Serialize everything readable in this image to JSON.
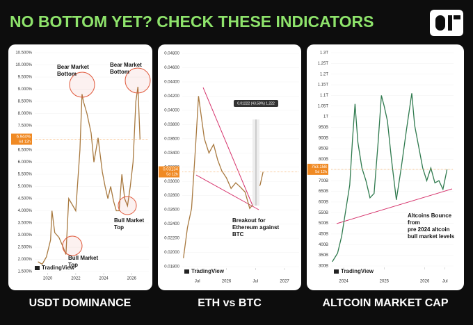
{
  "title": "NO BOTTOM YET? CHECK THESE INDICATORS",
  "chart_data": [
    {
      "type": "line",
      "title": "USDT DOMINANCE",
      "axis_side": "left",
      "color": "#a8793f",
      "x": [
        2019.3,
        2019.6,
        2019.9,
        2020.2,
        2020.3,
        2020.5,
        2020.8,
        2021.1,
        2021.3,
        2021.5,
        2021.8,
        2022.0,
        2022.3,
        2022.45,
        2022.55,
        2022.8,
        2023.1,
        2023.3,
        2023.6,
        2023.9,
        2024.1,
        2024.3,
        2024.5,
        2024.7,
        2024.9,
        2025.1,
        2025.3,
        2025.5,
        2025.7,
        2025.9,
        2026.1,
        2026.3,
        2026.45,
        2026.6
      ],
      "values": [
        1.9,
        1.8,
        2.1,
        2.8,
        4.0,
        3.1,
        2.9,
        2.5,
        2.2,
        4.5,
        4.2,
        4.0,
        6.5,
        8.8,
        8.5,
        8.0,
        7.2,
        6.0,
        7.0,
        5.6,
        5.0,
        4.5,
        5.0,
        4.4,
        4.0,
        4.0,
        5.5,
        4.5,
        4.2,
        5.0,
        6.0,
        8.5,
        9.1,
        6.944
      ],
      "xlim": [
        2019.07,
        2027.23
      ],
      "xticks": [
        2020,
        2022,
        2024,
        2026
      ],
      "ylim": [
        1.5,
        10.5
      ],
      "yticks": [
        {
          "value": 1.5,
          "label": "1.500%"
        },
        {
          "value": 2,
          "label": "2.000%"
        },
        {
          "value": 2.5,
          "label": "2.500%"
        },
        {
          "value": 3,
          "label": "3.000%"
        },
        {
          "value": 3.5,
          "label": "3.500%"
        },
        {
          "value": 4,
          "label": "4.000%"
        },
        {
          "value": 4.5,
          "label": "4.500%"
        },
        {
          "value": 5,
          "label": "5.000%"
        },
        {
          "value": 5.5,
          "label": "5.500%"
        },
        {
          "value": 6,
          "label": "6.000%"
        },
        {
          "value": 6.5,
          "label": "6.500%"
        },
        {
          "value": 7,
          "label": "7.000%"
        },
        {
          "value": 7.5,
          "label": "7.500%"
        },
        {
          "value": 8,
          "label": "8.000%"
        },
        {
          "value": 8.5,
          "label": "8.500%"
        },
        {
          "value": 9,
          "label": "9.000%"
        },
        {
          "value": 9.5,
          "label": "9.500%"
        },
        {
          "value": 10,
          "label": "10.000%"
        },
        {
          "value": 10.5,
          "label": "10.500%"
        }
      ],
      "last_price": {
        "value": 6.944,
        "label": "6.944%"
      },
      "countdown": "6d 12h",
      "annotations": [
        [
          "Bear Market",
          "Bottom"
        ],
        [
          "Bear Market",
          "Bottom"
        ],
        [
          "Bull Market",
          "Top"
        ],
        [
          "Bull Market",
          "Top"
        ]
      ],
      "watermark": "TradingView"
    },
    {
      "type": "line",
      "title": "ETH vs BTC",
      "axis_side": "left",
      "color": "#a8793f",
      "x": [
        2025.26,
        2025.33,
        2025.4,
        2025.47,
        2025.52,
        2025.57,
        2025.62,
        2025.7,
        2025.78,
        2025.85,
        2025.92,
        2026.0,
        2026.08,
        2026.16,
        2026.24,
        2026.32,
        2026.4,
        2026.46,
        2026.52,
        2026.58,
        2026.63
      ],
      "values": [
        0.0192,
        0.0235,
        0.0262,
        0.035,
        0.042,
        0.039,
        0.036,
        0.034,
        0.0352,
        0.033,
        0.0315,
        0.0305,
        0.029,
        0.0298,
        0.0292,
        0.0285,
        0.0262,
        0.0268,
        0.029,
        0.0295,
        0.03134
      ],
      "xlim": [
        2025.24,
        2027.25
      ],
      "xticks": [
        {
          "value": 2025.5,
          "label": "Jul"
        },
        {
          "value": 2026,
          "label": "2026"
        },
        {
          "value": 2026.5,
          "label": "Jul"
        },
        {
          "value": 2027,
          "label": "2027"
        }
      ],
      "ylim": [
        0.018,
        0.048
      ],
      "yticks": [
        {
          "value": 0.018,
          "label": "0.01800"
        },
        {
          "value": 0.02,
          "label": "0.02000"
        },
        {
          "value": 0.022,
          "label": "0.02200"
        },
        {
          "value": 0.024,
          "label": "0.02400"
        },
        {
          "value": 0.026,
          "label": "0.02600"
        },
        {
          "value": 0.028,
          "label": "0.02800"
        },
        {
          "value": 0.03,
          "label": "0.03000"
        },
        {
          "value": 0.032,
          "label": "0.03200"
        },
        {
          "value": 0.034,
          "label": "0.03400"
        },
        {
          "value": 0.036,
          "label": "0.03600"
        },
        {
          "value": 0.038,
          "label": "0.03800"
        },
        {
          "value": 0.04,
          "label": "0.04000"
        },
        {
          "value": 0.042,
          "label": "0.04200"
        },
        {
          "value": 0.044,
          "label": "0.04400"
        },
        {
          "value": 0.046,
          "label": "0.04600"
        },
        {
          "value": 0.048,
          "label": "0.04800"
        }
      ],
      "last_price": {
        "value": 0.03134,
        "label": "0.03134"
      },
      "countdown": "5d 12h",
      "measure": "0.01222 (43.58%) 1,222",
      "annotations": [
        [
          "Breakout for",
          "Ethereum against",
          "BTC"
        ]
      ],
      "watermark": "TradingView"
    },
    {
      "type": "line",
      "title": "ALTCOIN MARKET CAP",
      "axis_side": "left",
      "color": "#2f7a4e",
      "x": [
        2023.72,
        2023.85,
        2023.95,
        2024.05,
        2024.15,
        2024.22,
        2024.28,
        2024.35,
        2024.45,
        2024.55,
        2024.65,
        2024.75,
        2024.85,
        2024.93,
        2025.0,
        2025.08,
        2025.18,
        2025.3,
        2025.42,
        2025.55,
        2025.68,
        2025.75,
        2025.85,
        2025.95,
        2026.05,
        2026.15,
        2026.25,
        2026.35,
        2026.45,
        2026.55
      ],
      "values": [
        320,
        360,
        440,
        560,
        680,
        900,
        1060,
        880,
        760,
        700,
        620,
        640,
        880,
        1100,
        1050,
        980,
        800,
        610,
        760,
        940,
        1110,
        960,
        860,
        760,
        700,
        760,
        690,
        700,
        660,
        753.15
      ],
      "xlim": [
        2023.69,
        2026.71
      ],
      "xticks": [
        2024,
        2025,
        2026,
        {
          "value": 2026.5,
          "label": "Jul"
        }
      ],
      "ylim": [
        300,
        1300
      ],
      "yticks": [
        {
          "value": 300,
          "label": "300B"
        },
        {
          "value": 350,
          "label": "350B"
        },
        {
          "value": 400,
          "label": "400B"
        },
        {
          "value": 450,
          "label": "450B"
        },
        {
          "value": 500,
          "label": "500B"
        },
        {
          "value": 550,
          "label": "550B"
        },
        {
          "value": 600,
          "label": "600B"
        },
        {
          "value": 650,
          "label": "650B"
        },
        {
          "value": 700,
          "label": "700B"
        },
        {
          "value": 750,
          "label": "750B"
        },
        {
          "value": 800,
          "label": "800B"
        },
        {
          "value": 850,
          "label": "850B"
        },
        {
          "value": 900,
          "label": "900B"
        },
        {
          "value": 950,
          "label": "950B"
        },
        {
          "value": 1000,
          "label": "1T"
        },
        {
          "value": 1050,
          "label": "1.05T"
        },
        {
          "value": 1100,
          "label": "1.1T"
        },
        {
          "value": 1150,
          "label": "1.15T"
        },
        {
          "value": 1200,
          "label": "1.2T"
        },
        {
          "value": 1250,
          "label": "1.25T"
        },
        {
          "value": 1300,
          "label": "1.3T"
        }
      ],
      "last_price": {
        "value": 753.15,
        "label": "753.15B"
      },
      "countdown": "5d 12h",
      "annotations": [
        [
          "Altcoins Bounce",
          "from",
          "pre 2024 altcoin",
          "bull market levels"
        ]
      ],
      "watermark": "TradingView"
    }
  ]
}
